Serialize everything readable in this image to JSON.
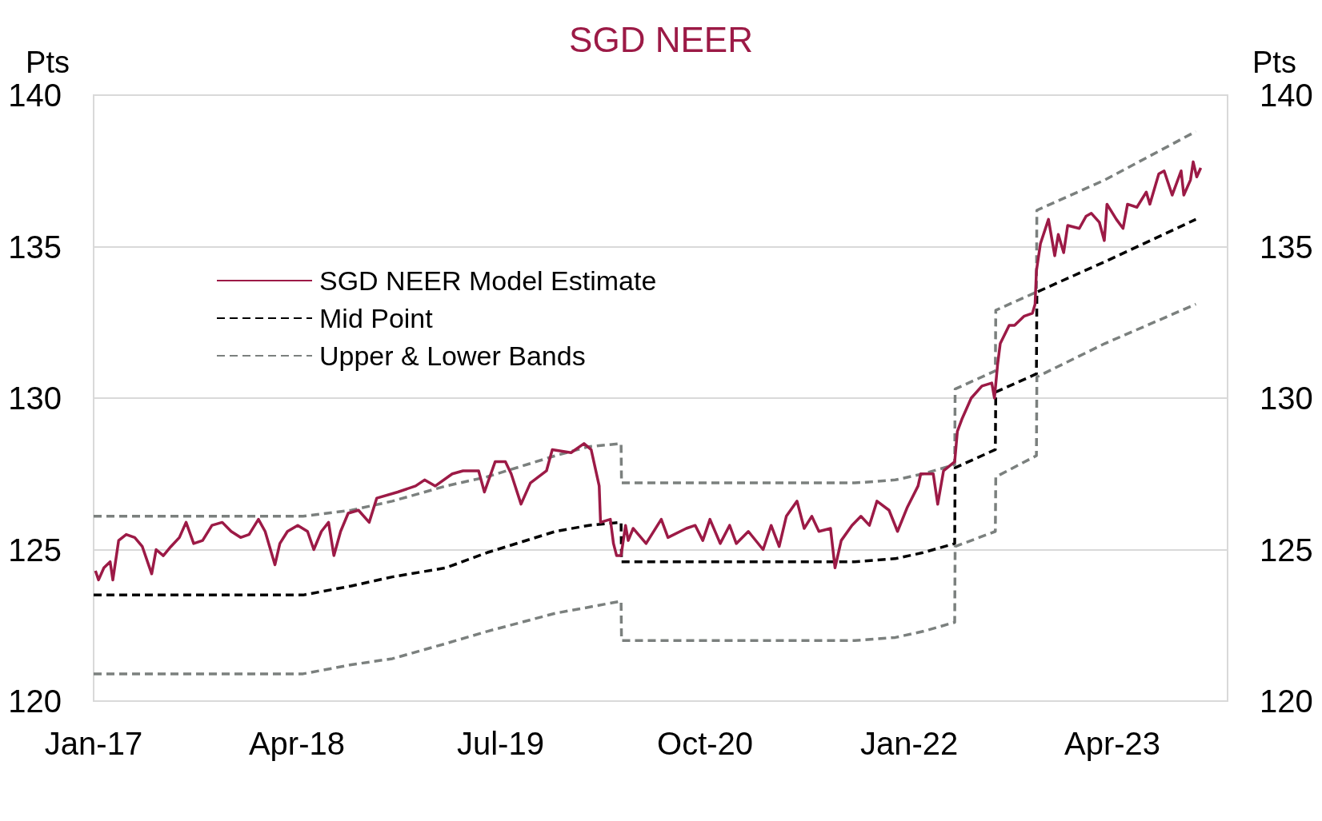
{
  "chart_data": {
    "type": "line",
    "title": "SGD NEER",
    "ylabel": "Pts",
    "y2label": "Pts",
    "x": [
      "2017-01-01",
      "2018-04-15",
      "2018-08-01",
      "2018-11-01",
      "2019-03-01",
      "2019-06-01",
      "2019-11-01",
      "2020-01-15",
      "2020-03-27",
      "2020-03-28",
      "2021-09-01",
      "2021-12-01",
      "2022-02-01",
      "2022-04-13",
      "2022-04-14",
      "2022-07-13",
      "2022-07-14",
      "2022-10-13",
      "2022-10-14",
      "2023-03-15",
      "2023-10-05"
    ],
    "series": [
      {
        "name": "SGD NEER Model Estimate",
        "color": "#9c1a46",
        "line_style": "solid",
        "x": [
          "2017-01-05",
          "2017-01-12",
          "2017-01-24",
          "2017-02-07",
          "2017-02-13",
          "2017-02-26",
          "2017-03-15",
          "2017-04-03",
          "2017-04-20",
          "2017-05-11",
          "2017-05-21",
          "2017-06-06",
          "2017-06-23",
          "2017-07-12",
          "2017-07-27",
          "2017-08-13",
          "2017-09-02",
          "2017-09-23",
          "2017-10-16",
          "2017-11-05",
          "2017-11-26",
          "2017-12-15",
          "2018-01-05",
          "2018-01-20",
          "2018-02-11",
          "2018-02-22",
          "2018-03-11",
          "2018-04-03",
          "2018-04-25",
          "2018-05-09",
          "2018-05-26",
          "2018-06-11",
          "2018-06-23",
          "2018-07-08",
          "2018-07-25",
          "2018-08-17",
          "2018-09-10",
          "2018-09-27",
          "2018-11-13",
          "2018-12-23",
          "2019-01-12",
          "2019-02-05",
          "2019-03-15",
          "2019-04-08",
          "2019-05-13",
          "2019-05-26",
          "2019-06-19",
          "2019-07-12",
          "2019-07-25",
          "2019-08-16",
          "2019-09-06",
          "2019-10-12",
          "2019-10-25",
          "2019-12-06",
          "2020-01-04",
          "2020-01-20",
          "2020-02-07",
          "2020-02-10",
          "2020-03-03",
          "2020-03-10",
          "2020-03-17",
          "2020-03-27",
          "2020-04-06",
          "2020-04-12",
          "2020-04-23",
          "2020-05-22",
          "2020-06-25",
          "2020-07-10",
          "2020-08-20",
          "2020-09-09",
          "2020-09-26",
          "2020-10-12",
          "2020-11-04",
          "2020-11-25",
          "2020-12-10",
          "2021-01-06",
          "2021-02-08",
          "2021-02-26",
          "2021-03-16",
          "2021-04-01",
          "2021-04-25",
          "2021-05-11",
          "2021-05-28",
          "2021-06-13",
          "2021-07-09",
          "2021-07-19",
          "2021-08-02",
          "2021-08-26",
          "2021-09-15",
          "2021-10-04",
          "2021-10-21",
          "2021-11-17",
          "2021-12-06",
          "2021-12-28",
          "2022-01-21",
          "2022-01-27",
          "2022-02-24",
          "2022-03-06",
          "2022-03-19",
          "2022-04-13",
          "2022-04-19",
          "2022-04-29",
          "2022-05-20",
          "2022-06-13",
          "2022-07-05",
          "2022-07-11",
          "2022-07-18",
          "2022-07-24",
          "2022-08-13",
          "2022-08-25",
          "2022-09-15",
          "2022-10-04",
          "2022-10-10",
          "2022-10-13",
          "2022-10-22",
          "2022-11-09",
          "2022-11-23",
          "2022-12-01",
          "2022-12-13",
          "2022-12-22",
          "2023-01-17",
          "2023-02-01",
          "2023-02-13",
          "2023-03-03",
          "2023-03-14",
          "2023-03-20",
          "2023-04-10",
          "2023-04-25",
          "2023-05-05",
          "2023-05-26",
          "2023-06-16",
          "2023-06-24",
          "2023-07-14",
          "2023-07-26",
          "2023-08-13",
          "2023-09-02",
          "2023-09-08",
          "2023-09-23",
          "2023-09-29",
          "2023-10-07",
          "2023-10-16"
        ],
        "values": [
          124.3,
          124.0,
          124.4,
          124.6,
          124.0,
          125.3,
          125.5,
          125.4,
          125.1,
          124.2,
          125.0,
          124.8,
          125.1,
          125.4,
          125.9,
          125.2,
          125.3,
          125.8,
          125.9,
          125.6,
          125.4,
          125.5,
          126.0,
          125.6,
          124.5,
          125.2,
          125.6,
          125.8,
          125.6,
          125.0,
          125.6,
          125.9,
          124.8,
          125.6,
          126.2,
          126.3,
          125.9,
          126.7,
          126.9,
          127.1,
          127.3,
          127.1,
          127.5,
          127.6,
          127.6,
          126.9,
          127.9,
          127.9,
          127.5,
          126.5,
          127.2,
          127.6,
          128.3,
          128.2,
          128.5,
          128.3,
          127.1,
          125.9,
          126.0,
          125.2,
          124.8,
          124.8,
          125.8,
          125.3,
          125.7,
          125.2,
          126.0,
          125.4,
          125.7,
          125.8,
          125.3,
          126.0,
          125.2,
          125.8,
          125.2,
          125.6,
          125.0,
          125.8,
          125.1,
          126.1,
          126.6,
          125.7,
          126.1,
          125.6,
          125.7,
          124.4,
          125.3,
          125.8,
          126.1,
          125.8,
          126.6,
          126.3,
          125.6,
          126.4,
          127.1,
          127.5,
          127.5,
          126.5,
          127.6,
          127.9,
          128.9,
          129.3,
          130.0,
          130.4,
          130.5,
          130.0,
          131.1,
          131.8,
          132.4,
          132.4,
          132.7,
          132.8,
          133.1,
          134.2,
          135.1,
          135.9,
          134.7,
          135.4,
          134.8,
          135.7,
          135.6,
          136.0,
          136.1,
          135.8,
          135.2,
          136.4,
          135.9,
          135.6,
          136.4,
          136.3,
          136.8,
          136.4,
          137.4,
          137.5,
          136.7,
          137.5,
          136.7,
          137.2,
          137.8,
          137.3,
          137.6
        ]
      },
      {
        "name": "Mid Point",
        "color": "#000000",
        "line_style": "dashed",
        "values": [
          123.5,
          123.5,
          123.8,
          124.1,
          124.4,
          124.9,
          125.6,
          125.8,
          125.9,
          124.6,
          124.6,
          124.7,
          124.9,
          125.2,
          127.7,
          128.3,
          130.2,
          130.8,
          133.5,
          134.5,
          135.9
        ]
      },
      {
        "name": "Upper & Lower Bands",
        "color": "#7b807e",
        "line_style": "dashed",
        "values": [
          126.1,
          126.1,
          126.3,
          126.6,
          127.1,
          127.4,
          128.1,
          128.4,
          128.5,
          127.2,
          127.2,
          127.3,
          127.5,
          127.8,
          130.3,
          130.9,
          132.9,
          133.5,
          136.2,
          137.2,
          138.8
        ]
      },
      {
        "color": "#7b807e",
        "line_style": "dashed",
        "values": [
          120.9,
          120.9,
          121.2,
          121.4,
          121.9,
          122.3,
          122.9,
          123.1,
          123.3,
          122.0,
          122.0,
          122.1,
          122.3,
          122.6,
          125.1,
          125.6,
          127.4,
          128.1,
          130.7,
          131.8,
          133.1
        ]
      }
    ],
    "xlim": [
      "2017-01-01",
      "2023-12-15"
    ],
    "xticks": [
      {
        "value": "2017-01",
        "label": "Jan-17"
      },
      {
        "value": "2018-04",
        "label": "Apr-18"
      },
      {
        "value": "2019-07",
        "label": "Jul-19"
      },
      {
        "value": "2020-10",
        "label": "Oct-20"
      },
      {
        "value": "2022-01",
        "label": "Jan-22"
      },
      {
        "value": "2023-04",
        "label": "Apr-23"
      }
    ],
    "ylim": [
      120,
      140
    ],
    "yticks": [
      120,
      125,
      130,
      135,
      140
    ],
    "y2lim": [
      120,
      140
    ],
    "y2ticks": [
      120,
      125,
      130,
      135,
      140
    ],
    "grid": "y",
    "legend": "top left",
    "marker": "none"
  }
}
